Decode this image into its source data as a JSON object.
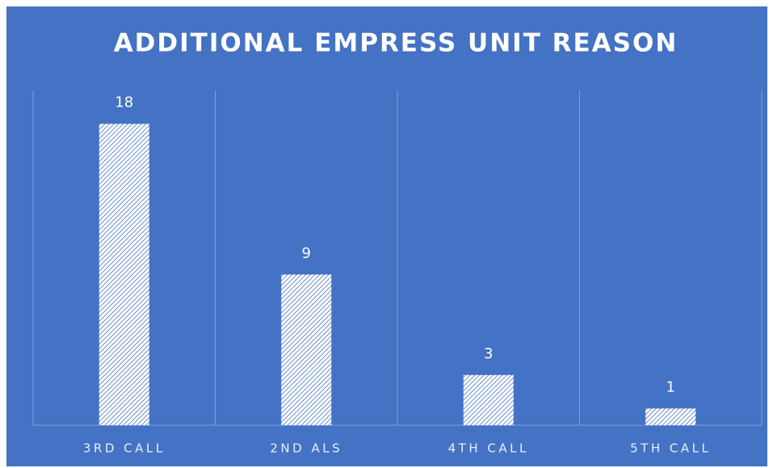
{
  "chart_data": {
    "type": "bar",
    "title": "ADDITIONAL EMPRESS UNIT REASON",
    "categories": [
      "3RD CALL",
      "2ND ALS",
      "4TH CALL",
      "5TH CALL"
    ],
    "values": [
      18,
      9,
      3,
      1
    ],
    "color": "#ffffff",
    "ylim": [
      0,
      20
    ],
    "data_labels": true
  }
}
